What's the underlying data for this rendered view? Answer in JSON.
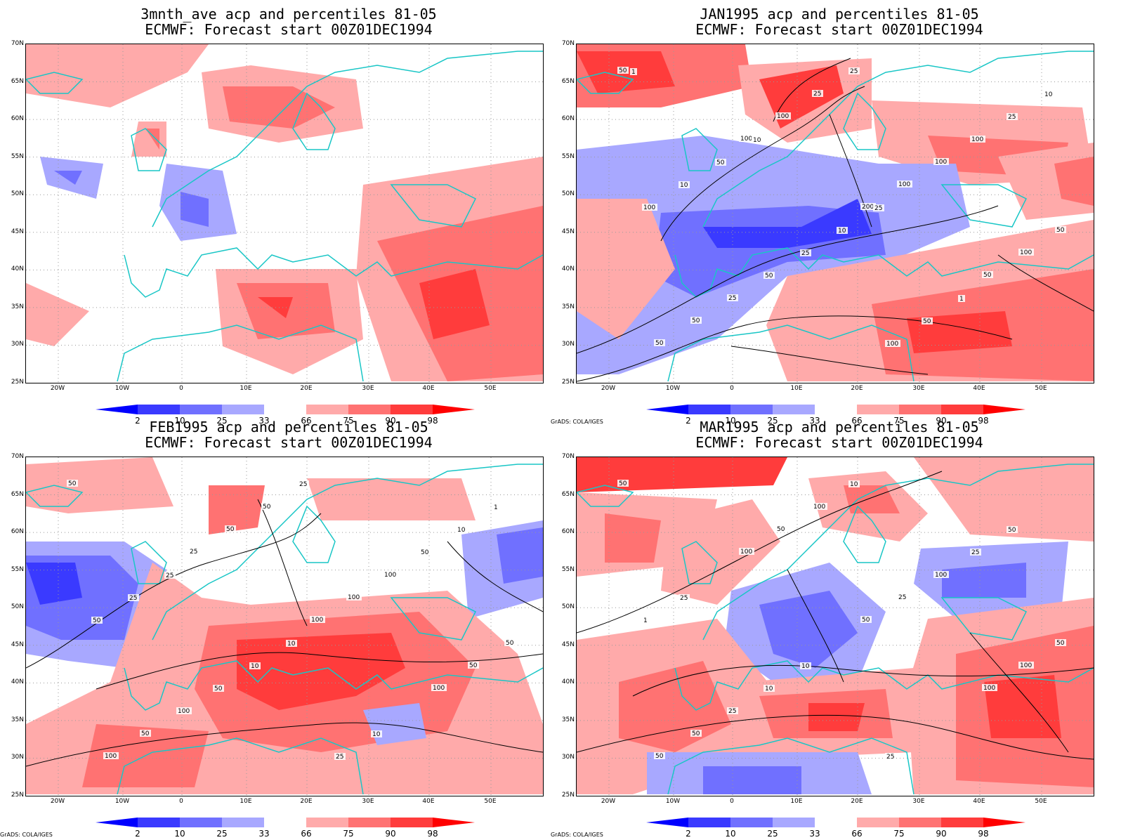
{
  "panels": [
    {
      "title_line1": "3mnth_ave acp and percentiles 81-05",
      "title_line2": "ECMWF: Forecast start 00Z01DEC1994",
      "credit": "",
      "contour_labels": []
    },
    {
      "title_line1": "JAN1995 acp and percentiles 81-05",
      "title_line2": "ECMWF: Forecast start 00Z01DEC1994",
      "credit": "GrADS: COLA/IGES",
      "contour_labels": [
        "50",
        "100",
        "200",
        "50",
        "50",
        "100",
        "100",
        "100",
        "50",
        "25",
        "100",
        "50",
        "25",
        "25",
        "100",
        "100",
        "50",
        "100",
        "25",
        "10",
        "25",
        "50",
        "10",
        "50",
        "10",
        "1",
        "1",
        "10",
        "25"
      ]
    },
    {
      "title_line1": "FEB1995 acp and percentiles 81-05",
      "title_line2": "ECMWF: Forecast start 00Z01DEC1994",
      "credit": "GrADS: COLA/IGES",
      "contour_labels": [
        "50",
        "25",
        "100",
        "100",
        "100",
        "50",
        "100",
        "50",
        "50",
        "50",
        "100",
        "50",
        "100",
        "25",
        "50",
        "50",
        "50",
        "25",
        "10",
        "25",
        "10",
        "10",
        "1",
        "25",
        "10"
      ]
    },
    {
      "title_line1": "MAR1995 acp and percentiles 81-05",
      "title_line2": "ECMWF: Forecast start 00Z01DEC1994",
      "credit": "GrADS: COLA/IGES",
      "contour_labels": [
        "50",
        "100",
        "50",
        "100",
        "50",
        "50",
        "25",
        "100",
        "50",
        "100",
        "100",
        "50",
        "25",
        "10",
        "25",
        "1",
        "10",
        "25",
        "50",
        "25",
        "10"
      ]
    }
  ],
  "axes": {
    "lat_labels": [
      "70N",
      "65N",
      "60N",
      "55N",
      "50N",
      "45N",
      "40N",
      "35N",
      "30N",
      "25N"
    ],
    "lon_labels": [
      "20W",
      "10W",
      "0",
      "10E",
      "20E",
      "30E",
      "40E",
      "50E"
    ]
  },
  "colorbar": {
    "labels": [
      "2",
      "10",
      "25",
      "33",
      "66",
      "75",
      "90",
      "98"
    ],
    "colors": {
      "lt2": "#0000ff",
      "2_10": "#3a3aff",
      "10_25": "#7070ff",
      "25_33": "#a8a8ff",
      "33_66": "#ffffff",
      "66_75": "#ffaaaa",
      "75_90": "#ff7272",
      "90_98": "#ff3c3c",
      "gt98": "#ff0000"
    }
  },
  "style": {
    "coast_color": "#19c6c6",
    "contour_color": "#000000",
    "grid_color": "#999999"
  }
}
